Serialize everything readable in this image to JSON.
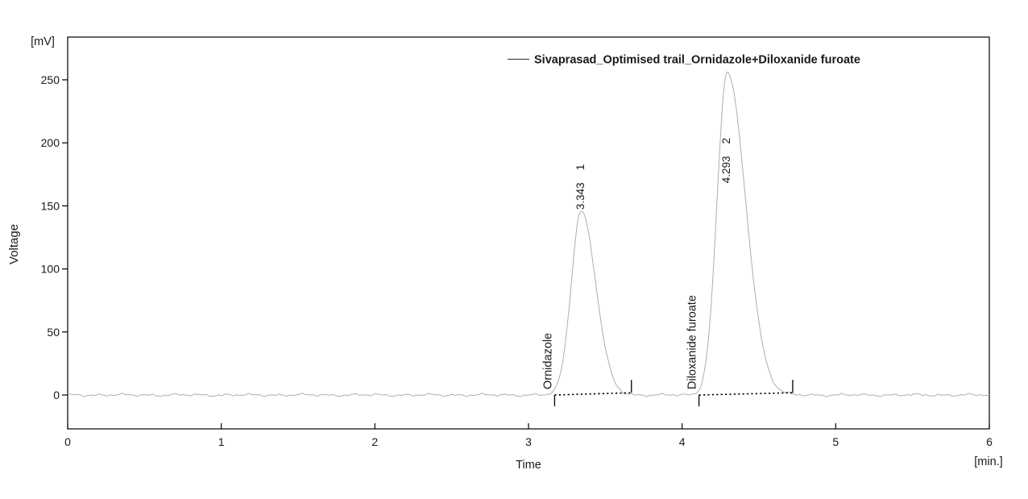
{
  "legend": {
    "sample_line_color": "#4a4a4a",
    "label": "Sivaprasad_Optimised trail_Ornidazole+Diloxanide furoate"
  },
  "axes": {
    "y_unit": "[mV]",
    "y_title": "Voltage",
    "x_title": "Time",
    "x_unit": "[min.]"
  },
  "colors": {
    "trace": "#aeaeae",
    "noise_line": "#c4c4c4",
    "axis": "#000000",
    "text": "#17171f",
    "integration_marks": "#000000",
    "background": "#ffffff"
  },
  "chart_data": {
    "type": "line",
    "title": "",
    "xlabel": "Time",
    "x_unit": "[min.]",
    "ylabel": "Voltage",
    "y_unit": "[mV]",
    "xlim": [
      0,
      6
    ],
    "ylim_mV": [
      -28,
      285
    ],
    "x_ticks": [
      0,
      1,
      2,
      3,
      4,
      5,
      6
    ],
    "y_ticks": [
      0,
      50,
      100,
      150,
      200,
      250
    ],
    "grid": false,
    "legend_position": "top-right-inside",
    "series": [
      {
        "name": "Sivaprasad_Optimised trail_Ornidazole+Diloxanide furoate",
        "baseline_mV": 0,
        "noise_amplitude_mV": 1
      }
    ],
    "peaks": [
      {
        "number": "1",
        "retention_time_min": 3.343,
        "retention_time_label": "3.343",
        "height_mV": 146,
        "compound": "Ornidazole",
        "integration_start_min": 3.17,
        "integration_end_min": 3.67,
        "sigma_left_min": 0.065,
        "sigma_right_min": 0.095,
        "label_base_mV": 147
      },
      {
        "number": "2",
        "retention_time_min": 4.293,
        "retention_time_label": "4.293",
        "height_mV": 256,
        "compound": "Diloxanide furoate",
        "integration_start_min": 4.11,
        "integration_end_min": 4.72,
        "sigma_left_min": 0.065,
        "sigma_right_min": 0.12,
        "label_base_mV": 168
      }
    ]
  }
}
